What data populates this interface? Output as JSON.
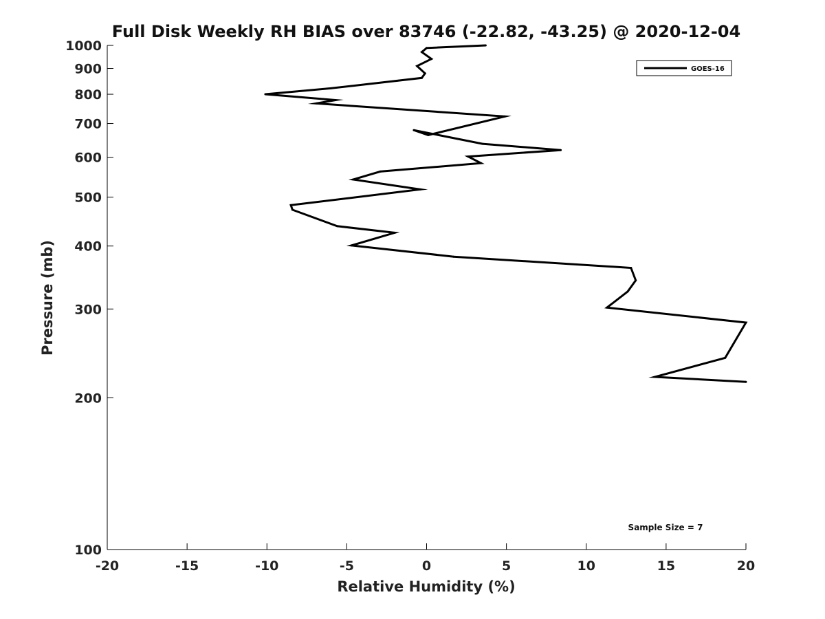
{
  "chart_data": {
    "type": "line",
    "title": "Full Disk Weekly RH BIAS over 83746 (-22.82, -43.25) @ 2020-12-04",
    "xlabel": "Relative Humidity (%)",
    "ylabel": "Pressure (mb)",
    "xlim": [
      -20,
      20
    ],
    "ylim": [
      1000,
      100
    ],
    "y_scale": "log",
    "grid": false,
    "x_ticks": [
      -20,
      -15,
      -10,
      -5,
      0,
      5,
      10,
      15,
      20
    ],
    "x_tick_labels": [
      "-20",
      "-15",
      "-10",
      "-5",
      "0",
      "5",
      "10",
      "15",
      "20"
    ],
    "y_ticks": [
      100,
      200,
      300,
      400,
      500,
      600,
      700,
      800,
      900,
      1000
    ],
    "y_tick_labels": [
      "100",
      "200",
      "300",
      "400",
      "500",
      "600",
      "700",
      "800",
      "900",
      "1000"
    ],
    "legend": {
      "position": "top-right",
      "entries": [
        "GOES-16"
      ]
    },
    "annotation": "Sample Size = 7",
    "line_color": "#000000",
    "series": [
      {
        "name": "GOES-16",
        "points": [
          [
            3.7,
            1000
          ],
          [
            0,
            988
          ],
          [
            -0.3,
            970
          ],
          [
            0.3,
            940
          ],
          [
            -0.6,
            910
          ],
          [
            -0.1,
            880
          ],
          [
            -0.3,
            862
          ],
          [
            -6.0,
            822
          ],
          [
            -10.1,
            800
          ],
          [
            -5.7,
            779
          ],
          [
            -6.9,
            767
          ],
          [
            4.9,
            723
          ],
          [
            0.1,
            664
          ],
          [
            -0.8,
            679
          ],
          [
            3.5,
            638
          ],
          [
            8.4,
            620
          ],
          [
            2.6,
            602
          ],
          [
            3.4,
            584
          ],
          [
            -2.9,
            562
          ],
          [
            -4.6,
            542
          ],
          [
            -0.4,
            518
          ],
          [
            -8.5,
            482
          ],
          [
            -8.4,
            472
          ],
          [
            -5.6,
            438
          ],
          [
            -2.0,
            425
          ],
          [
            -4.7,
            401
          ],
          [
            1.7,
            381
          ],
          [
            12.8,
            362
          ],
          [
            13.1,
            342
          ],
          [
            12.6,
            325
          ],
          [
            11.3,
            302
          ],
          [
            20,
            282
          ],
          [
            18.7,
            240
          ],
          [
            14.3,
            220
          ],
          [
            20,
            215
          ]
        ]
      }
    ]
  }
}
